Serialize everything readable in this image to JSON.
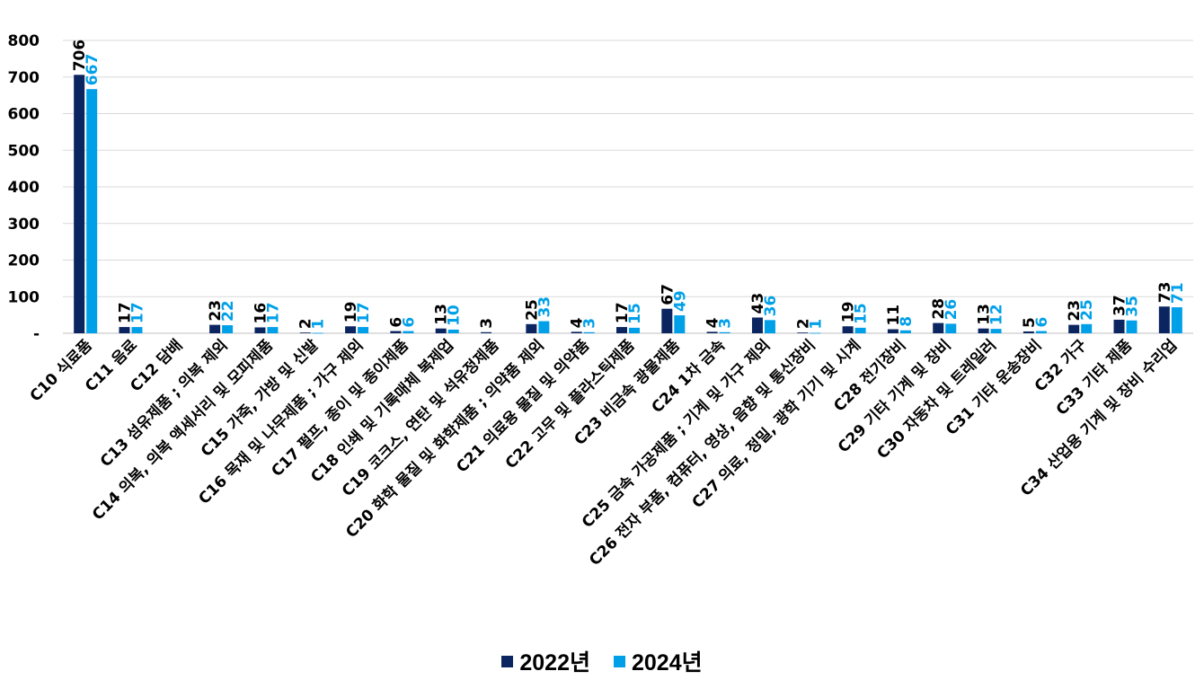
{
  "chart_data": {
    "type": "bar",
    "title": "",
    "xlabel": "",
    "ylabel": "",
    "ylim": [
      0,
      800
    ],
    "yticks": [
      "-",
      "100",
      "200",
      "300",
      "400",
      "500",
      "600",
      "700",
      "800"
    ],
    "grid": true,
    "legend_position": "bottom",
    "categories": [
      "C10 식료품",
      "C11 음료",
      "C12 담배",
      "C13 섬유제품 ; 의복 제외",
      "C14 의복, 의복 액세서리 및 모피제품",
      "C15 가죽, 가방 및 신발",
      "C16 목재 및 나무제품 ; 가구 제외",
      "C17 펄프, 종이 및 종이제품",
      "C18 인쇄 및 기록매체 복제업",
      "C19 코크스, 연탄 및 석유정제품",
      "C20 화학 물질 및 화학제품 ; 의약품 제외",
      "C21 의료용 물질 및 의약품",
      "C22 고무 및 플라스틱제품",
      "C23 비금속 광물제품",
      "C24 1차 금속",
      "C25 금속 가공제품 ; 기계 및 가구 제외",
      "C26 전자 부품, 컴퓨터, 영상, 음향 및 통신장비",
      "C27 의료, 정밀, 광학 기기 및 시계",
      "C28 전기장비",
      "C29 기타 기계 및 장비",
      "C30 자동차 및 트레일러",
      "C31 기타 운송장비",
      "C32 가구",
      "C33 기타 제품",
      "C34 산업용 기계 및 장비 수리업"
    ],
    "series": [
      {
        "name": "2022년",
        "color": "#0b2560",
        "values": [
          706,
          17,
          null,
          23,
          16,
          2,
          19,
          6,
          13,
          3,
          25,
          4,
          17,
          67,
          4,
          43,
          2,
          19,
          11,
          28,
          13,
          5,
          23,
          37,
          73
        ]
      },
      {
        "name": "2024년",
        "color": "#00a0e9",
        "values": [
          667,
          17,
          null,
          22,
          17,
          1,
          17,
          6,
          10,
          null,
          33,
          3,
          15,
          49,
          3,
          36,
          1,
          15,
          8,
          26,
          12,
          6,
          25,
          35,
          71
        ]
      }
    ]
  }
}
